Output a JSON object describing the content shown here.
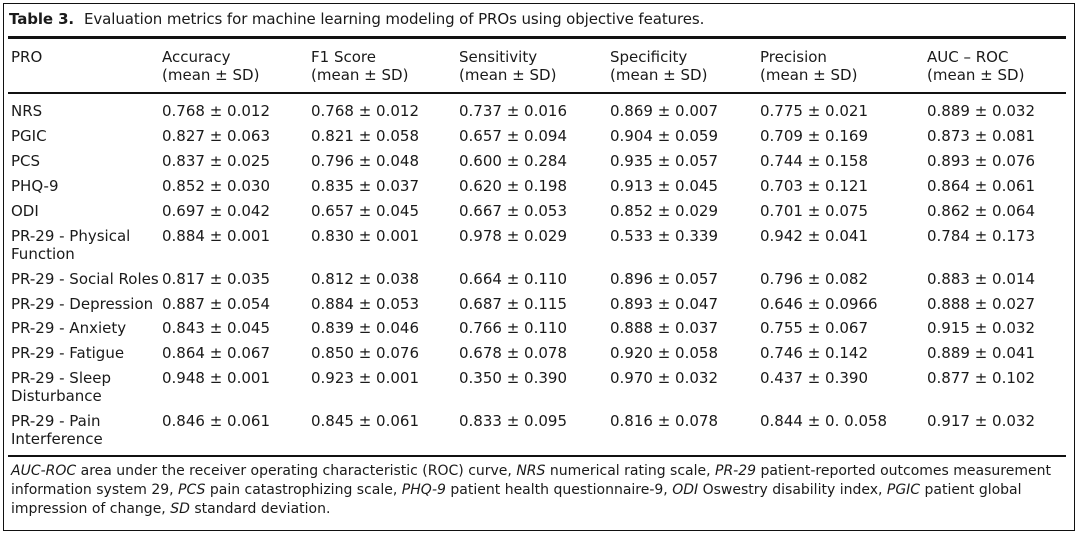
{
  "caption": {
    "label": "Table 3.",
    "text": "Evaluation metrics for machine learning modeling of PROs using objective features."
  },
  "headers": [
    {
      "line1": "PRO",
      "line2": ""
    },
    {
      "line1": "Accuracy",
      "line2": "(mean ± SD)"
    },
    {
      "line1": "F1 Score",
      "line2": "(mean ± SD)"
    },
    {
      "line1": "Sensitivity",
      "line2": "(mean ± SD)"
    },
    {
      "line1": "Specificity",
      "line2": "(mean ± SD)"
    },
    {
      "line1": "Precision",
      "line2": "(mean ± SD)"
    },
    {
      "line1": "AUC – ROC",
      "line2": "(mean ± SD)"
    }
  ],
  "rows": [
    {
      "pro": "NRS",
      "pro2": "",
      "cells": [
        "0.768 ± 0.012",
        "0.768 ± 0.012",
        "0.737 ± 0.016",
        "0.869 ± 0.007",
        "0.775 ± 0.021",
        "0.889 ± 0.032"
      ]
    },
    {
      "pro": "PGIC",
      "pro2": "",
      "cells": [
        "0.827 ± 0.063",
        "0.821 ± 0.058",
        "0.657 ± 0.094",
        "0.904 ± 0.059",
        "0.709 ± 0.169",
        "0.873 ± 0.081"
      ]
    },
    {
      "pro": "PCS",
      "pro2": "",
      "cells": [
        "0.837 ± 0.025",
        "0.796 ± 0.048",
        "0.600 ± 0.284",
        "0.935 ± 0.057",
        "0.744 ± 0.158",
        "0.893 ± 0.076"
      ]
    },
    {
      "pro": "PHQ-9",
      "pro2": "",
      "cells": [
        "0.852 ± 0.030",
        "0.835 ± 0.037",
        "0.620 ± 0.198",
        "0.913 ± 0.045",
        "0.703 ± 0.121",
        "0.864 ± 0.061"
      ]
    },
    {
      "pro": "ODI",
      "pro2": "",
      "cells": [
        "0.697 ± 0.042",
        "0.657 ± 0.045",
        "0.667 ± 0.053",
        "0.852 ± 0.029",
        "0.701 ± 0.075",
        "0.862 ± 0.064"
      ]
    },
    {
      "pro": "PR-29 - Physical",
      "pro2": "Function",
      "cells": [
        "0.884 ± 0.001",
        "0.830 ± 0.001",
        "0.978 ± 0.029",
        "0.533 ± 0.339",
        "0.942 ± 0.041",
        "0.784 ± 0.173"
      ]
    },
    {
      "pro": "PR-29 - Social Roles",
      "pro2": "",
      "cells": [
        "0.817 ± 0.035",
        "0.812 ± 0.038",
        "0.664 ± 0.110",
        "0.896 ± 0.057",
        "0.796 ± 0.082",
        "0.883 ± 0.014"
      ]
    },
    {
      "pro": "PR-29 - Depression",
      "pro2": "",
      "cells": [
        "0.887 ± 0.054",
        "0.884 ± 0.053",
        "0.687 ± 0.115",
        "0.893 ± 0.047",
        "0.646 ± 0.0966",
        "0.888 ± 0.027"
      ]
    },
    {
      "pro": "PR-29 - Anxiety",
      "pro2": "",
      "cells": [
        "0.843 ± 0.045",
        "0.839 ± 0.046",
        "0.766 ± 0.110",
        "0.888 ± 0.037",
        "0.755 ± 0.067",
        "0.915 ± 0.032"
      ]
    },
    {
      "pro": "PR-29 - Fatigue",
      "pro2": "",
      "cells": [
        "0.864 ± 0.067",
        "0.850 ± 0.076",
        "0.678 ± 0.078",
        "0.920 ± 0.058",
        "0.746 ± 0.142",
        "0.889 ± 0.041"
      ]
    },
    {
      "pro": "PR-29 - Sleep",
      "pro2": "Disturbance",
      "cells": [
        "0.948 ± 0.001",
        "0.923 ± 0.001",
        "0.350 ± 0.390",
        "0.970 ± 0.032",
        "0.437 ± 0.390",
        "0.877 ± 0.102"
      ]
    },
    {
      "pro": "PR-29 - Pain",
      "pro2": "Interference",
      "cells": [
        "0.846 ± 0.061",
        "0.845 ± 0.061",
        "0.833 ± 0.095",
        "0.816 ± 0.078",
        "0.844 ± 0. 0.058",
        "0.917 ± 0.032"
      ]
    }
  ],
  "footnote": [
    {
      "abbr": "AUC-ROC",
      "text": " area under the receiver operating characteristic (ROC) curve, "
    },
    {
      "abbr": "NRS",
      "text": " numerical rating scale, "
    },
    {
      "abbr": "PR-29",
      "text": " patient-reported outcomes measurement information system 29, "
    },
    {
      "abbr": "PCS",
      "text": " pain catastrophizing scale, "
    },
    {
      "abbr": "PHQ-9",
      "text": " patient health questionnaire-9, "
    },
    {
      "abbr": "ODI",
      "text": " Oswestry disability index, "
    },
    {
      "abbr": "PGIC",
      "text": " patient global impression of change, "
    },
    {
      "abbr": "SD",
      "text": " standard deviation."
    }
  ]
}
